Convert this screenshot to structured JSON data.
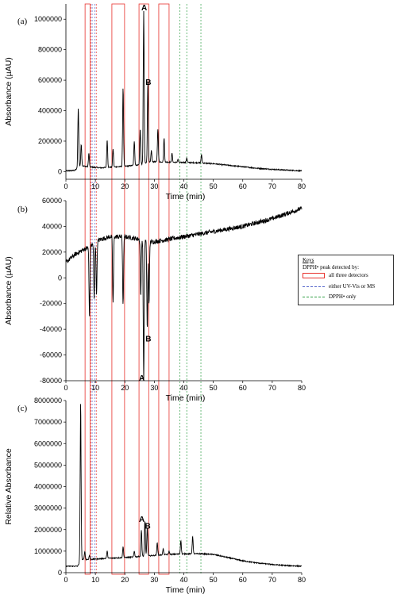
{
  "figure": {
    "legend": {
      "title": "Keys",
      "subtitle": "DPPH• peak detected by:",
      "items": [
        {
          "label": "all three detectors",
          "color": "#e8332e",
          "style": "box"
        },
        {
          "label": "either UV-Vis or MS",
          "color": "#5566cc",
          "style": "dash"
        },
        {
          "label": "DPPH• only",
          "color": "#2f9e44",
          "style": "dash"
        }
      ]
    },
    "colors": {
      "trace": "#000000",
      "red": "#e8332e",
      "blue": "#5566cc",
      "green": "#2f9e44"
    }
  },
  "chart_data": [
    {
      "type": "line",
      "panel": "(a)",
      "xlabel": "Time (min)",
      "ylabel": "Absorbance (µAU)",
      "xlim": [
        0,
        80
      ],
      "ylim": [
        -50000,
        1100000
      ],
      "xticks": [
        0,
        10,
        20,
        30,
        40,
        50,
        60,
        70,
        80
      ],
      "yticks": [
        0,
        200000,
        400000,
        600000,
        800000,
        1000000
      ],
      "annotations": [
        {
          "label": "A",
          "x": 26.4,
          "y": 1080000
        },
        {
          "label": "B",
          "x": 27.8,
          "y": 590000
        }
      ],
      "series": [
        {
          "baseline": [
            [
              0,
              5000
            ],
            [
              3,
              8000
            ],
            [
              5,
              40000
            ],
            [
              8,
              30000
            ],
            [
              12,
              25000
            ],
            [
              16,
              30000
            ],
            [
              20,
              35000
            ],
            [
              25,
              45000
            ],
            [
              28,
              60000
            ],
            [
              30,
              65000
            ],
            [
              35,
              62000
            ],
            [
              40,
              60000
            ],
            [
              45,
              58000
            ],
            [
              50,
              52000
            ],
            [
              55,
              42000
            ],
            [
              60,
              32000
            ],
            [
              65,
              22000
            ],
            [
              70,
              15000
            ],
            [
              75,
              10000
            ],
            [
              80,
              5000
            ]
          ],
          "peaks": [
            [
              4.2,
              420000
            ],
            [
              5.2,
              180000
            ],
            [
              7.8,
              120000
            ],
            [
              14,
              210000
            ],
            [
              16,
              150000
            ],
            [
              19.4,
              550000
            ],
            [
              23.2,
              200000
            ],
            [
              25.2,
              280000
            ],
            [
              26.4,
              1050000
            ],
            [
              27.8,
              590000
            ],
            [
              29,
              140000
            ],
            [
              31.2,
              280000
            ],
            [
              33.3,
              220000
            ],
            [
              36,
              120000
            ],
            [
              38,
              80000
            ],
            [
              41,
              90000
            ],
            [
              46,
              110000
            ]
          ]
        }
      ]
    },
    {
      "type": "line",
      "panel": "(b)",
      "xlabel": "Time (min)",
      "ylabel": "Absorbance (µAU)",
      "xlim": [
        0,
        80
      ],
      "ylim": [
        -80000,
        60000
      ],
      "xticks": [
        0,
        10,
        20,
        30,
        40,
        50,
        60,
        70,
        80
      ],
      "yticks": [
        -80000,
        -60000,
        -40000,
        -20000,
        0,
        20000,
        40000,
        60000
      ],
      "annotations": [
        {
          "label": "B",
          "x": 27.8,
          "y": -47000
        },
        {
          "label": "A",
          "x": 25.6,
          "y": -77500
        }
      ],
      "series": [
        {
          "baseline": [
            [
              0,
              12000
            ],
            [
              3,
              18000
            ],
            [
              6,
              22000
            ],
            [
              8,
              24000
            ],
            [
              10,
              28000
            ],
            [
              12,
              30000
            ],
            [
              15,
              32000
            ],
            [
              20,
              32000
            ],
            [
              25,
              30000
            ],
            [
              28,
              28000
            ],
            [
              30,
              28000
            ],
            [
              35,
              30000
            ],
            [
              40,
              32000
            ],
            [
              45,
              34000
            ],
            [
              50,
              36000
            ],
            [
              55,
              38000
            ],
            [
              60,
              40000
            ],
            [
              65,
              43000
            ],
            [
              70,
              46000
            ],
            [
              75,
              50000
            ],
            [
              80,
              54000
            ]
          ],
          "peaks": [
            [
              8.0,
              -30000
            ],
            [
              9.6,
              -16000
            ],
            [
              10.4,
              -12000
            ],
            [
              16,
              -20000
            ],
            [
              19.4,
              -22000
            ],
            [
              25.4,
              -15000
            ],
            [
              26.4,
              -80000
            ],
            [
              27.6,
              -40000
            ],
            [
              28.2,
              -20000
            ]
          ]
        }
      ]
    },
    {
      "type": "line",
      "panel": "(c)",
      "xlabel": "Time (min)",
      "ylabel": "Relative Absorbance",
      "xlim": [
        0,
        80
      ],
      "ylim": [
        0,
        8000000
      ],
      "xticks": [
        0,
        10,
        20,
        30,
        40,
        50,
        60,
        70,
        80
      ],
      "yticks": [
        0,
        1000000,
        2000000,
        3000000,
        4000000,
        5000000,
        6000000,
        7000000,
        8000000
      ],
      "annotations": [
        {
          "label": "A",
          "x": 25.6,
          "y": 2500000
        },
        {
          "label": "B",
          "x": 27.6,
          "y": 2200000
        }
      ],
      "series": [
        {
          "baseline": [
            [
              0,
              300000
            ],
            [
              4,
              300000
            ],
            [
              5,
              600000
            ],
            [
              8,
              620000
            ],
            [
              12,
              650000
            ],
            [
              16,
              680000
            ],
            [
              20,
              700000
            ],
            [
              25,
              750000
            ],
            [
              30,
              800000
            ],
            [
              35,
              850000
            ],
            [
              40,
              870000
            ],
            [
              45,
              880000
            ],
            [
              50,
              850000
            ],
            [
              55,
              700000
            ],
            [
              60,
              550000
            ],
            [
              65,
              450000
            ],
            [
              70,
              380000
            ],
            [
              75,
              330000
            ],
            [
              80,
              300000
            ]
          ],
          "peaks": [
            [
              5.0,
              7900000
            ],
            [
              6.4,
              1000000
            ],
            [
              8.0,
              800000
            ],
            [
              14,
              1000000
            ],
            [
              19.4,
              1200000
            ],
            [
              23.2,
              1000000
            ],
            [
              25.6,
              2000000
            ],
            [
              26.8,
              2400000
            ],
            [
              27.6,
              2100000
            ],
            [
              31,
              1400000
            ],
            [
              33,
              1100000
            ],
            [
              35,
              1000000
            ],
            [
              39,
              1500000
            ],
            [
              43,
              1700000
            ]
          ]
        }
      ]
    }
  ],
  "overlay_bands": {
    "boxes_min": [
      [
        6.5,
        8.2
      ],
      [
        15.6,
        19.9
      ],
      [
        24.8,
        28.1
      ],
      [
        31.5,
        35.0
      ]
    ],
    "blue_dashed_min": [
      8.9,
      9.8
    ],
    "green_dashed_min": [
      38.7,
      41.0,
      45.8
    ],
    "red_dashed_min": [
      8.4,
      10.3
    ]
  }
}
